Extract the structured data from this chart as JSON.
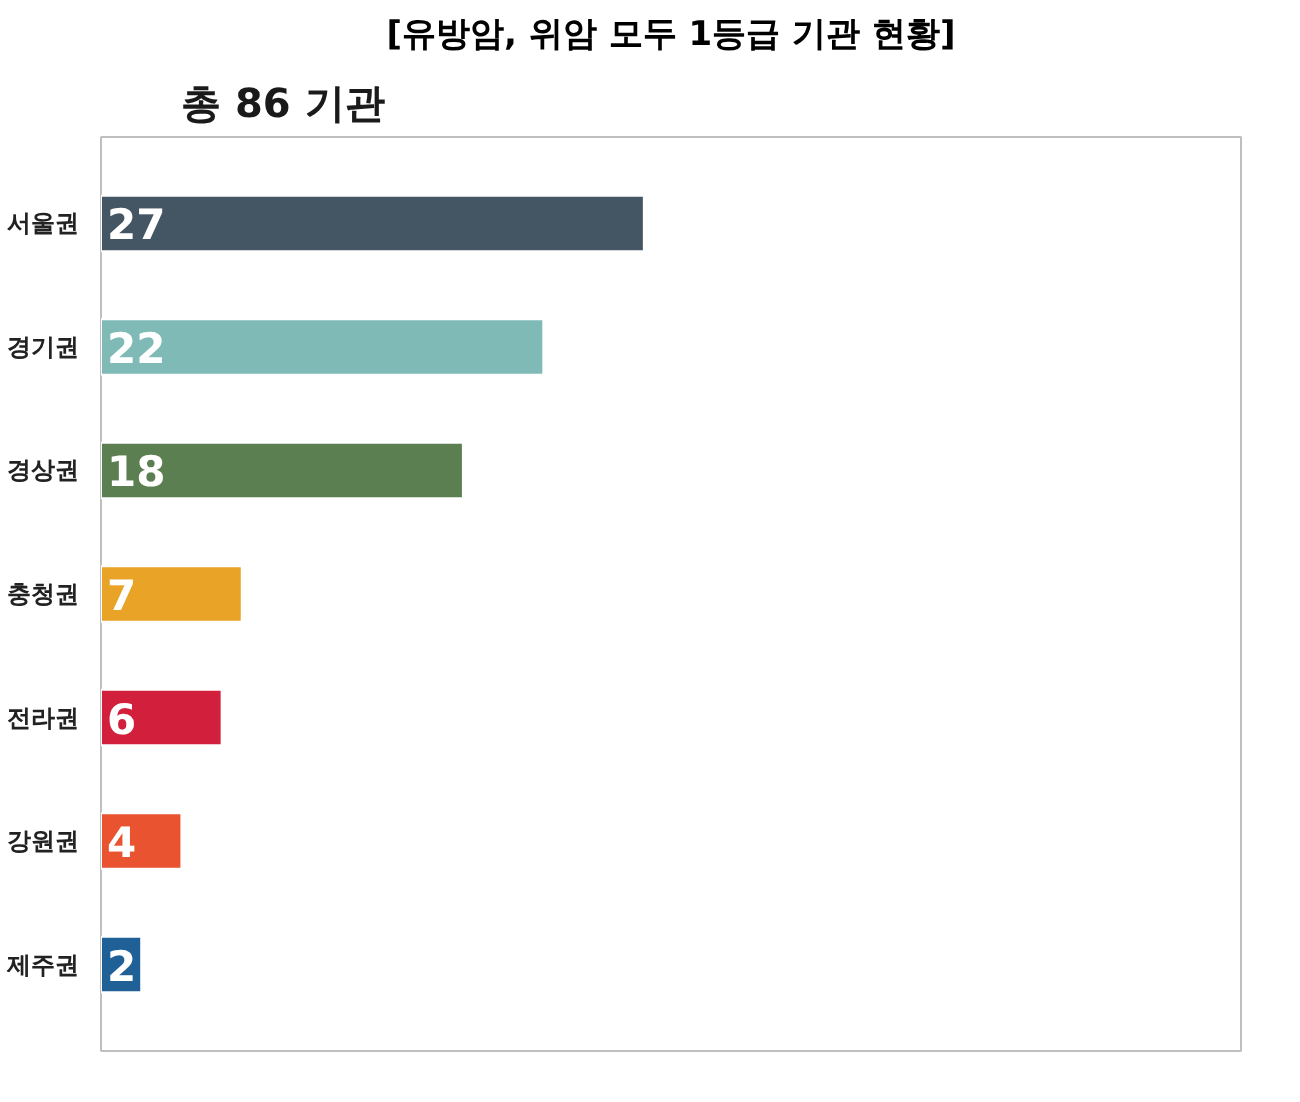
{
  "chart_data": {
    "type": "bar",
    "orientation": "horizontal",
    "title": "[유방암, 위암 모두 1등급 기관 현황]",
    "subtitle": "총 86 기관",
    "categories": [
      "서울권",
      "경기권",
      "경상권",
      "충청권",
      "전라권",
      "강원권",
      "제주권"
    ],
    "values": [
      27,
      22,
      18,
      7,
      6,
      4,
      2
    ],
    "colors": [
      "#445664",
      "#7fbab6",
      "#5b7f50",
      "#e9a326",
      "#d21f3b",
      "#e9532f",
      "#1f6097"
    ],
    "data_labels": true,
    "tick_labels": "y",
    "grid": false
  }
}
